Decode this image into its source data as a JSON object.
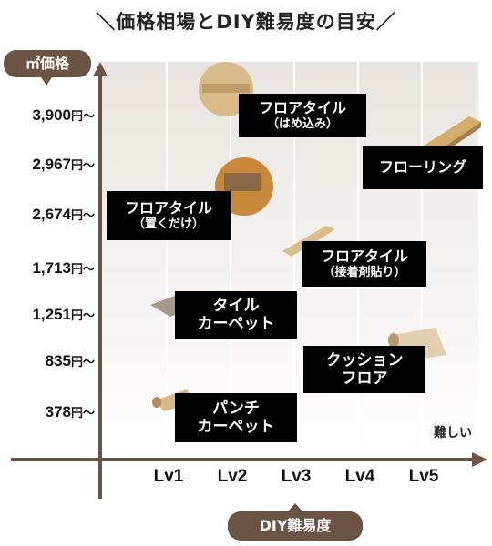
{
  "title": "＼価格相場とDIY難易度の目安／",
  "y_unit_label": "㎡価格",
  "x_unit_label": "DIY難易度",
  "difficulty_note": "難しい",
  "y_ticks": [
    {
      "amount": "3,900",
      "unit": "円〜"
    },
    {
      "amount": "2,967",
      "unit": "円〜"
    },
    {
      "amount": "2,674",
      "unit": "円〜"
    },
    {
      "amount": "1,713",
      "unit": "円〜"
    },
    {
      "amount": "1,251",
      "unit": "円〜"
    },
    {
      "amount": "835",
      "unit": "円〜"
    },
    {
      "amount": "378",
      "unit": "円〜"
    }
  ],
  "x_ticks": [
    "Lv1",
    "Lv2",
    "Lv3",
    "Lv4",
    "Lv5"
  ],
  "colors": {
    "axis": "#6b5443",
    "label_bg": "#000000",
    "pill_bg": "#6b5443",
    "plot_bg_top": "#e9e4df",
    "plot_bg_bottom": "#ffffff",
    "gridline": "#ffffff"
  },
  "chart_data": {
    "type": "scatter",
    "x_categories": [
      "Lv1",
      "Lv2",
      "Lv3",
      "Lv4",
      "Lv5"
    ],
    "y_categories": [
      "378",
      "835",
      "1,251",
      "1,713",
      "2,674",
      "2,967",
      "3,900"
    ],
    "points": [
      {
        "name": "フロアタイル（はめ込み）",
        "line1": "フロアタイル",
        "line2": "（はめ込み）",
        "level": 2.2,
        "price": 3900
      },
      {
        "name": "フローリング",
        "line1": "フローリング",
        "line2": "",
        "level": 4.8,
        "price": 2967
      },
      {
        "name": "フロアタイル（置くだけ）",
        "line1": "フロアタイル",
        "line2": "（置くだけ）",
        "level": 2.0,
        "price": 2674
      },
      {
        "name": "フロアタイル（接着剤貼り）",
        "line1": "フロアタイル",
        "line2": "（接着剤貼り）",
        "level": 3.2,
        "price": 1713
      },
      {
        "name": "タイルカーペット",
        "line1": "タイル",
        "line2": "カーペット",
        "level": 1.6,
        "price": 1251
      },
      {
        "name": "クッションフロア",
        "line1": "クッション",
        "line2": "フロア",
        "level": 4.0,
        "price": 835
      },
      {
        "name": "パンチカーペット",
        "line1": "パンチ",
        "line2": "カーペット",
        "level": 1.4,
        "price": 378
      }
    ]
  }
}
